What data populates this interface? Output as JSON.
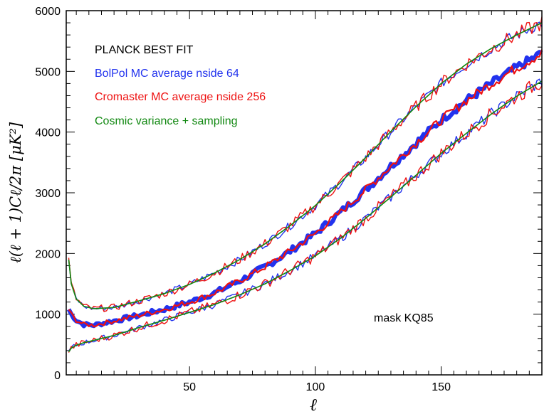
{
  "chart_data": {
    "type": "line",
    "title": "",
    "xlabel": "ℓ",
    "ylabel": "ℓ(ℓ + 1)Cℓ/2π [μK²]",
    "xlim": [
      1,
      190
    ],
    "ylim": [
      0,
      6000
    ],
    "xticks": [
      50,
      100,
      150
    ],
    "yticks": [
      0,
      1000,
      2000,
      3000,
      4000,
      5000,
      6000
    ],
    "xtick_labels": [
      "50",
      "100",
      "150"
    ],
    "ytick_labels": [
      "0",
      "1000",
      "2000",
      "3000",
      "4000",
      "5000",
      "6000"
    ],
    "grid": false,
    "legend": [
      {
        "label": "PLANCK BEST FIT",
        "color": "#000000"
      },
      {
        "label": "BolPol MC average nside 64",
        "color": "#2233ee"
      },
      {
        "label": "Cromaster MC average nside 256",
        "color": "#ee1111"
      },
      {
        "label": "Cosmic variance + sampling",
        "color": "#118811"
      }
    ],
    "annotation": "mask KQ85",
    "series": [
      {
        "name": "PLANCK BEST FIT (mean)",
        "x": [
          2,
          3,
          5,
          8,
          12,
          20,
          30,
          40,
          50,
          60,
          70,
          80,
          90,
          100,
          110,
          120,
          130,
          140,
          150,
          160,
          170,
          180,
          190
        ],
        "values": [
          1080,
          1000,
          900,
          830,
          820,
          890,
          980,
          1080,
          1200,
          1350,
          1550,
          1780,
          2040,
          2330,
          2680,
          3050,
          3440,
          3820,
          4200,
          4520,
          4800,
          5060,
          5300
        ]
      },
      {
        "name": "Cosmic variance + sampling (upper)",
        "x": [
          2,
          3,
          5,
          8,
          12,
          20,
          30,
          40,
          50,
          60,
          70,
          80,
          90,
          100,
          110,
          120,
          130,
          140,
          150,
          160,
          170,
          180,
          190
        ],
        "values": [
          1900,
          1500,
          1250,
          1130,
          1090,
          1110,
          1220,
          1340,
          1490,
          1680,
          1900,
          2160,
          2460,
          2790,
          3170,
          3580,
          4010,
          4420,
          4800,
          5120,
          5380,
          5600,
          5800
        ]
      },
      {
        "name": "Cosmic variance + sampling (lower)",
        "x": [
          2,
          3,
          5,
          8,
          12,
          20,
          30,
          40,
          50,
          60,
          70,
          80,
          90,
          100,
          110,
          120,
          130,
          140,
          150,
          160,
          170,
          180,
          190
        ],
        "values": [
          380,
          440,
          490,
          530,
          570,
          650,
          780,
          900,
          1030,
          1160,
          1320,
          1500,
          1720,
          1960,
          2250,
          2580,
          2930,
          3290,
          3650,
          3980,
          4300,
          4590,
          4840
        ]
      }
    ]
  },
  "colors": {
    "blue": "#2233ee",
    "red": "#ee1111",
    "green": "#118811",
    "black": "#000000"
  }
}
